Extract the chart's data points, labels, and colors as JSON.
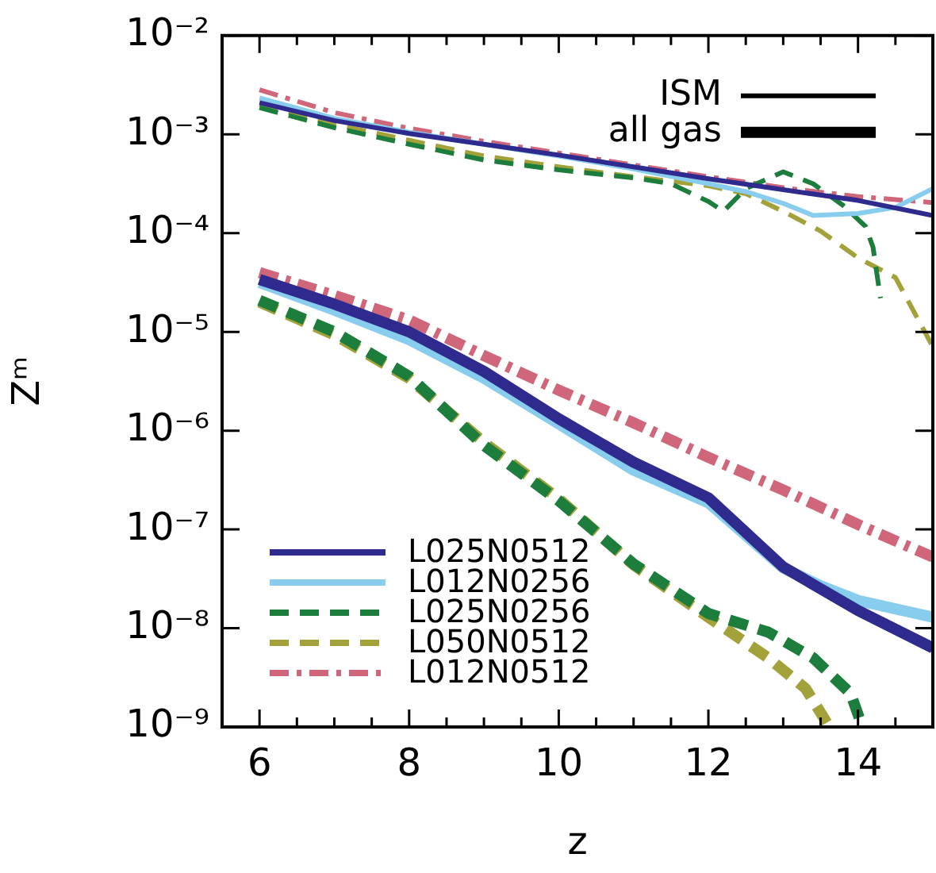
{
  "chart_data": {
    "type": "line",
    "xlabel": "z",
    "ylabel": "Zᵐ",
    "log": "y",
    "xlim": [
      5.5,
      15
    ],
    "xticks": [
      {
        "value": 5.5,
        "label": null
      },
      6,
      {
        "value": 6.5,
        "label": null
      },
      {
        "value": 7,
        "label": null
      },
      {
        "value": 7.5,
        "label": null
      },
      8,
      {
        "value": 8.5,
        "label": null
      },
      {
        "value": 9,
        "label": null
      },
      {
        "value": 9.5,
        "label": null
      },
      10,
      {
        "value": 10.5,
        "label": null
      },
      {
        "value": 11,
        "label": null
      },
      {
        "value": 11.5,
        "label": null
      },
      12,
      {
        "value": 12.5,
        "label": null
      },
      {
        "value": 13,
        "label": null
      },
      {
        "value": 13.5,
        "label": null
      },
      14,
      {
        "value": 14.5,
        "label": null
      }
    ],
    "ylim": [
      1e-09,
      0.01
    ],
    "yticks": [
      {
        "value": 1e-09,
        "label": "10⁻⁹"
      },
      {
        "value": 1e-08,
        "label": "10⁻⁸"
      },
      {
        "value": 1e-07,
        "label": "10⁻⁷"
      },
      {
        "value": 1e-06,
        "label": "10⁻⁶"
      },
      {
        "value": 1e-05,
        "label": "10⁻⁵"
      },
      {
        "value": 0.0001,
        "label": "10⁻⁴"
      },
      {
        "value": 0.001,
        "label": "10⁻³"
      },
      {
        "value": 0.01,
        "label": "10⁻²"
      }
    ],
    "legend": "bottom left",
    "annotations": [
      "ISM",
      "all gas"
    ],
    "series": [
      {
        "name": "L025N0512",
        "color": "#2e2a8e",
        "line_style": "solid",
        "x": [
          6,
          7,
          8,
          9,
          10,
          11,
          12,
          13,
          14,
          15
        ],
        "values": [
          0.00209,
          0.00138,
          0.00102,
          0.000794,
          0.000617,
          0.000468,
          0.000355,
          0.000275,
          0.000214,
          0.000151
        ]
      },
      {
        "name": "L012N0256",
        "color": "#88ccee",
        "line_style": "solid",
        "x": [
          6,
          7,
          8,
          9,
          10,
          11,
          12,
          12.5,
          13,
          13.4,
          14,
          14.5,
          15
        ],
        "values": [
          0.00234,
          0.00145,
          0.00105,
          0.000794,
          0.000603,
          0.000447,
          0.000316,
          0.000263,
          0.0002,
          0.000151,
          0.000158,
          0.000182,
          0.000282
        ]
      },
      {
        "name": "L025N0256",
        "color": "#1c7d3c",
        "line_style": "dashed",
        "x": [
          6,
          7,
          8,
          9,
          10,
          11,
          11.5,
          12,
          12.2,
          12.5,
          13,
          13.4,
          13.8,
          14.1,
          14.2,
          14.3
        ],
        "values": [
          0.00186,
          0.00117,
          0.000794,
          0.00055,
          0.000437,
          0.000363,
          0.000316,
          0.000209,
          0.000166,
          0.000282,
          0.000417,
          0.000316,
          0.000191,
          0.000117,
          7.24e-05,
          2.19e-05
        ]
      },
      {
        "name": "L050N0512",
        "color": "#a3a23a",
        "line_style": "dashed",
        "x": [
          6,
          7,
          8,
          9,
          10,
          11,
          12,
          12.5,
          13,
          13.5,
          14,
          14.5,
          15
        ],
        "values": [
          0.002,
          0.00126,
          0.000871,
          0.000603,
          0.000468,
          0.000372,
          0.000302,
          0.000251,
          0.000166,
          0.000105,
          5.62e-05,
          3.55e-05,
          7.08e-06
        ]
      },
      {
        "name": "L012N0512",
        "color": "#cf6679",
        "line_style": "dashdot",
        "x": [
          6,
          7,
          8,
          9,
          10,
          11,
          12,
          13,
          14,
          15
        ],
        "values": [
          0.00282,
          0.00166,
          0.00115,
          0.000851,
          0.000646,
          0.00049,
          0.000372,
          0.000288,
          0.000234,
          0.000204
        ]
      },
      {
        "color": "#2e2a8e",
        "line_style": "solid",
        "x": [
          6,
          7,
          8,
          9,
          10,
          11,
          12,
          13,
          14,
          15
        ],
        "values": [
          3.39e-05,
          1.91e-05,
          1e-05,
          3.98e-06,
          1.32e-06,
          4.79e-07,
          2.09e-07,
          4.17e-08,
          1.51e-08,
          6.31e-09
        ]
      },
      {
        "color": "#88ccee",
        "line_style": "solid",
        "x": [
          6,
          7,
          8,
          9,
          10,
          11,
          12,
          13,
          13.5,
          14,
          15
        ],
        "values": [
          3.16e-05,
          1.66e-05,
          8.32e-06,
          3.39e-06,
          1.17e-06,
          3.98e-07,
          1.86e-07,
          4.07e-08,
          2.69e-08,
          1.91e-08,
          1.29e-08
        ]
      },
      {
        "color": "#1c7d3c",
        "line_style": "dashed",
        "x": [
          6,
          7,
          8,
          9,
          10,
          11,
          12,
          12.8,
          13.4,
          13.9,
          14.05
        ],
        "values": [
          2.09e-05,
          1e-05,
          3.55e-06,
          7.08e-07,
          1.95e-07,
          4.47e-08,
          1.41e-08,
          9.12e-09,
          5.01e-09,
          2.19e-09,
          1.05e-09
        ]
      },
      {
        "color": "#a3a23a",
        "line_style": "dashed",
        "x": [
          6,
          7,
          8,
          9,
          10,
          11,
          12,
          12.8,
          13.3,
          13.6
        ],
        "values": [
          2e-05,
          9.33e-06,
          3.39e-06,
          7.59e-07,
          2.04e-07,
          4.37e-08,
          1.29e-08,
          5.01e-09,
          2.45e-09,
          1.05e-09
        ]
      },
      {
        "color": "#cf6679",
        "line_style": "dashdot",
        "x": [
          6,
          7,
          8,
          9,
          10,
          11,
          12,
          13,
          14,
          15
        ],
        "values": [
          3.98e-05,
          2.34e-05,
          1.32e-05,
          5.75e-06,
          2.57e-06,
          1.2e-06,
          5.37e-07,
          2.51e-07,
          1.12e-07,
          5.25e-08
        ]
      }
    ]
  }
}
